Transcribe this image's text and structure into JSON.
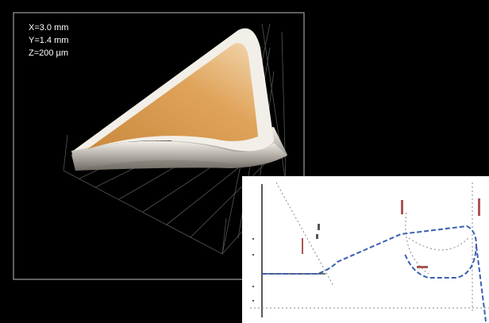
{
  "panel": {
    "labels": [
      "X=3.0 mm",
      "Y=1.4 mm",
      "Z=200 µm"
    ]
  }
}
